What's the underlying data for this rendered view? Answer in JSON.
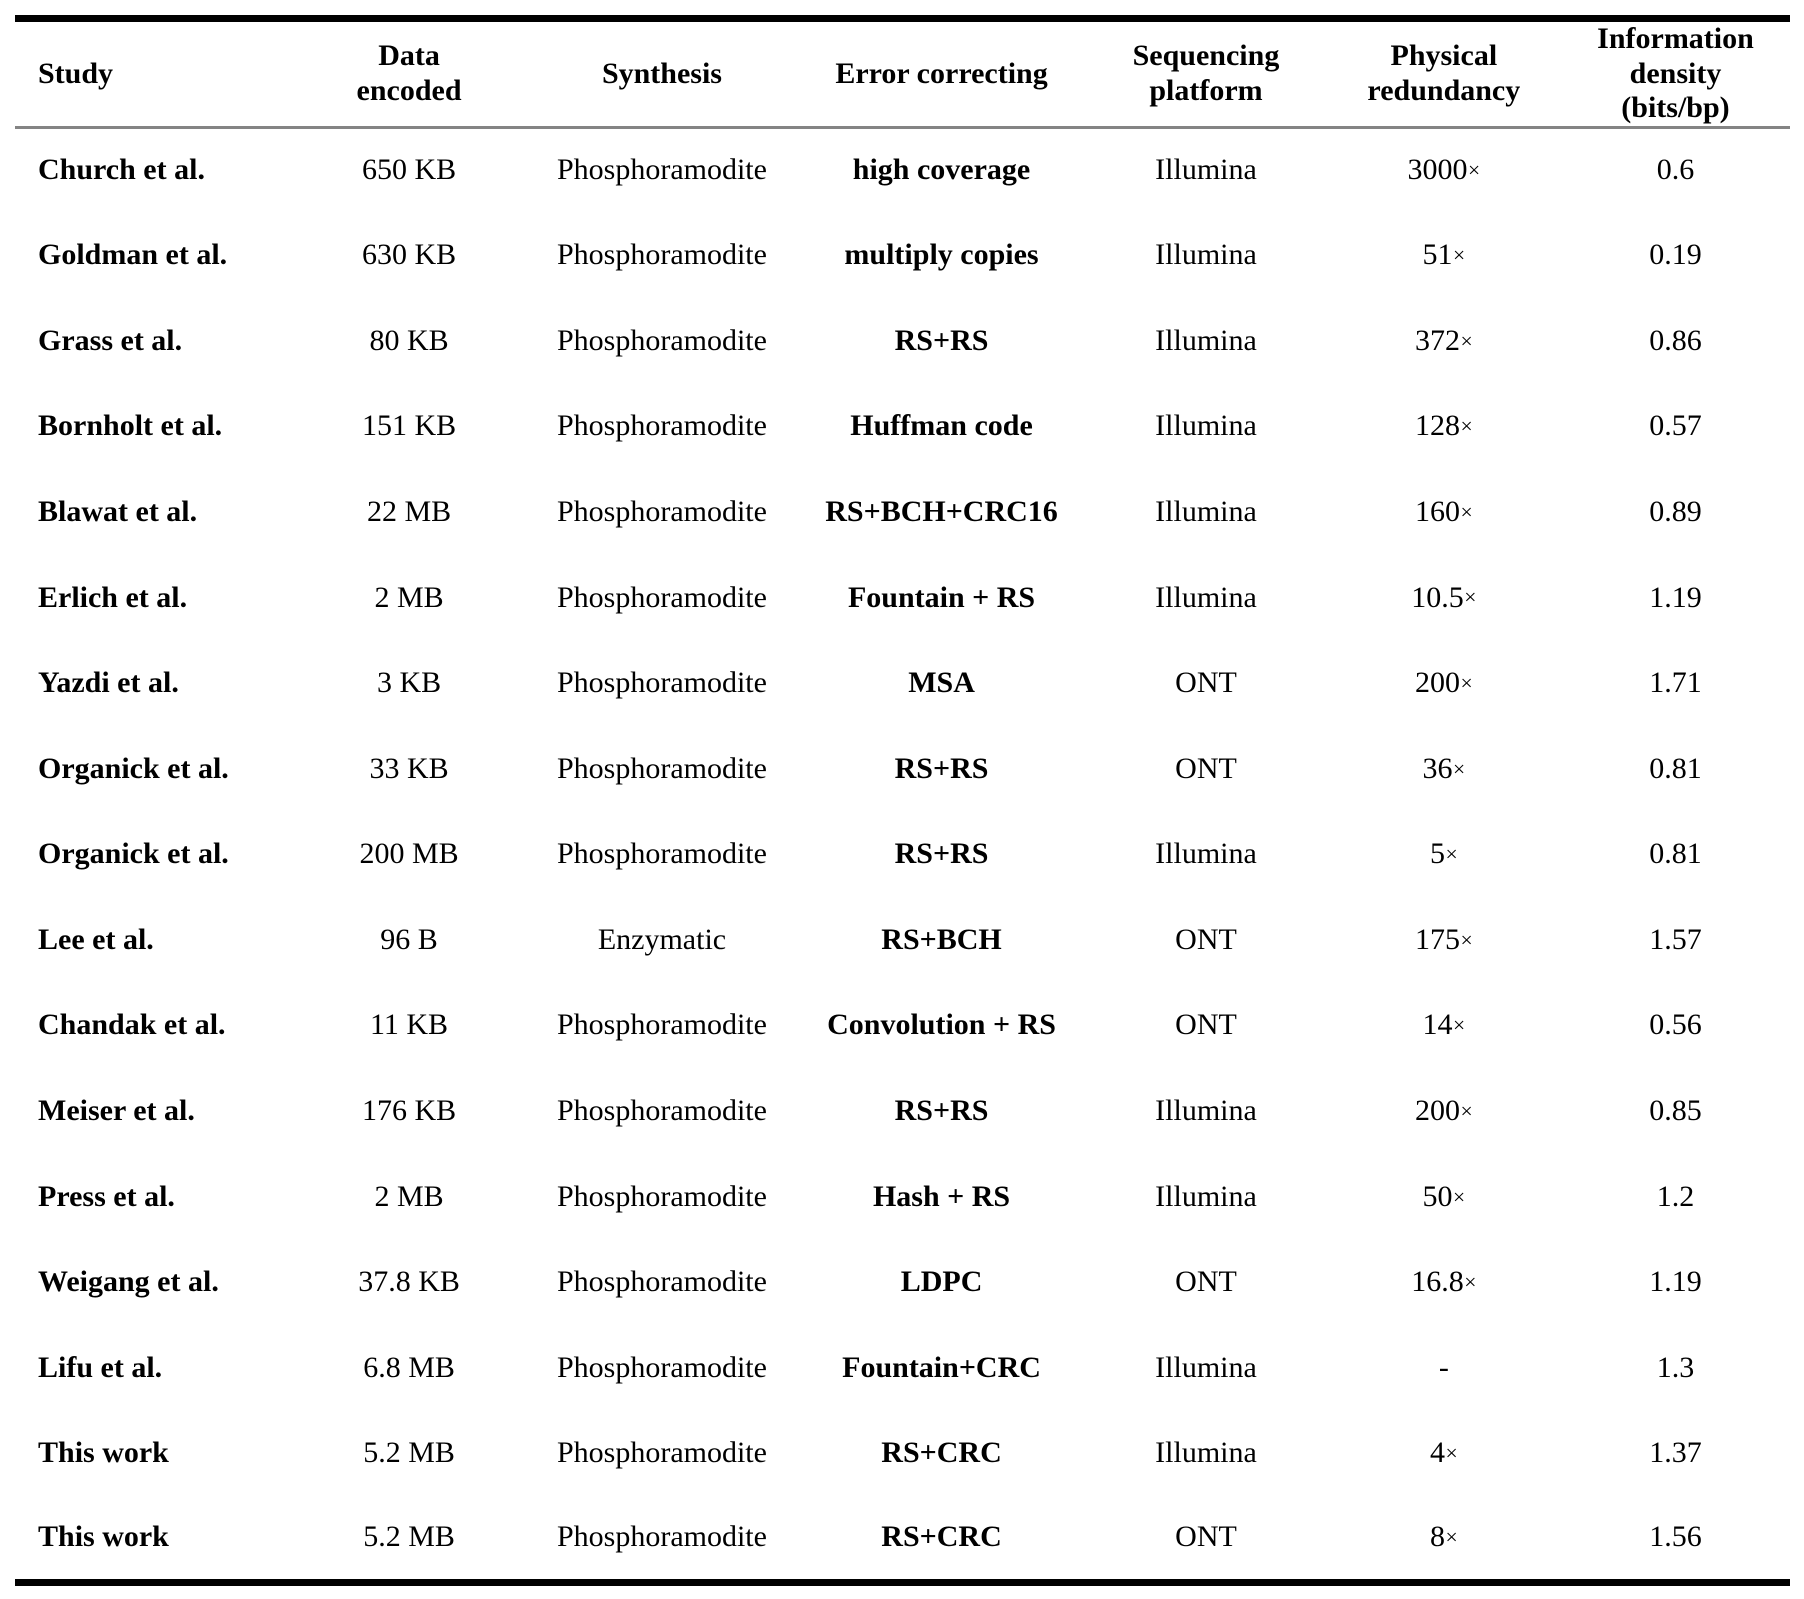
{
  "table": {
    "columns": [
      {
        "key": "study",
        "label": "Study",
        "label_lines": [
          "Study"
        ]
      },
      {
        "key": "data_encoded",
        "label": "Data encoded",
        "label_lines": [
          "Data",
          "encoded"
        ]
      },
      {
        "key": "synthesis",
        "label": "Synthesis",
        "label_lines": [
          "Synthesis"
        ]
      },
      {
        "key": "error_correcting",
        "label": "Error correcting",
        "label_lines": [
          "Error correcting"
        ]
      },
      {
        "key": "platform",
        "label": "Sequencing platform",
        "label_lines": [
          "Sequencing",
          "platform"
        ]
      },
      {
        "key": "redundancy",
        "label": "Physical redundancy",
        "label_lines": [
          "Physical",
          "redundancy"
        ]
      },
      {
        "key": "density",
        "label": "Information density (bits/bp)",
        "label_lines": [
          "Information",
          "density",
          "(bits/bp)"
        ]
      }
    ],
    "rows": [
      {
        "study": "Church et al.",
        "data_encoded": "650 KB",
        "synthesis": "Phosphoramodite",
        "error_correcting": "high coverage",
        "platform": "Illumina",
        "redundancy": "3000×",
        "density": "0.6"
      },
      {
        "study": "Goldman et al.",
        "data_encoded": "630 KB",
        "synthesis": "Phosphoramodite",
        "error_correcting": "multiply copies",
        "platform": "Illumina",
        "redundancy": "51×",
        "density": "0.19"
      },
      {
        "study": "Grass et al.",
        "data_encoded": "80 KB",
        "synthesis": "Phosphoramodite",
        "error_correcting": "RS+RS",
        "platform": "Illumina",
        "redundancy": "372×",
        "density": "0.86"
      },
      {
        "study": "Bornholt et al.",
        "data_encoded": "151 KB",
        "synthesis": "Phosphoramodite",
        "error_correcting": "Huffman code",
        "platform": "Illumina",
        "redundancy": "128×",
        "density": "0.57"
      },
      {
        "study": "Blawat et al.",
        "data_encoded": "22 MB",
        "synthesis": "Phosphoramodite",
        "error_correcting": "RS+BCH+CRC16",
        "platform": "Illumina",
        "redundancy": "160×",
        "density": "0.89"
      },
      {
        "study": "Erlich et al.",
        "data_encoded": "2 MB",
        "synthesis": "Phosphoramodite",
        "error_correcting": "Fountain + RS",
        "platform": "Illumina",
        "redundancy": "10.5×",
        "density": "1.19"
      },
      {
        "study": "Yazdi et al.",
        "data_encoded": "3 KB",
        "synthesis": "Phosphoramodite",
        "error_correcting": "MSA",
        "platform": "ONT",
        "redundancy": "200×",
        "density": "1.71"
      },
      {
        "study": "Organick et al.",
        "data_encoded": "33 KB",
        "synthesis": "Phosphoramodite",
        "error_correcting": "RS+RS",
        "platform": "ONT",
        "redundancy": "36×",
        "density": "0.81"
      },
      {
        "study": "Organick et al.",
        "data_encoded": "200 MB",
        "synthesis": "Phosphoramodite",
        "error_correcting": "RS+RS",
        "platform": "Illumina",
        "redundancy": "5×",
        "density": "0.81"
      },
      {
        "study": "Lee et al.",
        "data_encoded": "96 B",
        "synthesis": "Enzymatic",
        "error_correcting": "RS+BCH",
        "platform": "ONT",
        "redundancy": "175×",
        "density": "1.57"
      },
      {
        "study": "Chandak et al.",
        "data_encoded": "11 KB",
        "synthesis": "Phosphoramodite",
        "error_correcting": "Convolution + RS",
        "platform": "ONT",
        "redundancy": "14×",
        "density": "0.56"
      },
      {
        "study": "Meiser et al.",
        "data_encoded": "176 KB",
        "synthesis": "Phosphoramodite",
        "error_correcting": "RS+RS",
        "platform": "Illumina",
        "redundancy": "200×",
        "density": "0.85"
      },
      {
        "study": "Press et al.",
        "data_encoded": "2 MB",
        "synthesis": "Phosphoramodite",
        "error_correcting": "Hash + RS",
        "platform": "Illumina",
        "redundancy": "50×",
        "density": "1.2"
      },
      {
        "study": "Weigang et al.",
        "data_encoded": "37.8 KB",
        "synthesis": "Phosphoramodite",
        "error_correcting": "LDPC",
        "platform": "ONT",
        "redundancy": "16.8×",
        "density": "1.19"
      },
      {
        "study": "Lifu et al.",
        "data_encoded": "6.8 MB",
        "synthesis": "Phosphoramodite",
        "error_correcting": "Fountain+CRC",
        "platform": "Illumina",
        "redundancy": "-",
        "density": "1.3"
      },
      {
        "study": "This work",
        "data_encoded": "5.2 MB",
        "synthesis": "Phosphoramodite",
        "error_correcting": "RS+CRC",
        "platform": "Illumina",
        "redundancy": "4×",
        "density": "1.37"
      },
      {
        "study": "This work",
        "data_encoded": "5.2 MB",
        "synthesis": "Phosphoramodite",
        "error_correcting": "RS+CRC",
        "platform": "ONT",
        "redundancy": "8×",
        "density": "1.56"
      }
    ]
  }
}
